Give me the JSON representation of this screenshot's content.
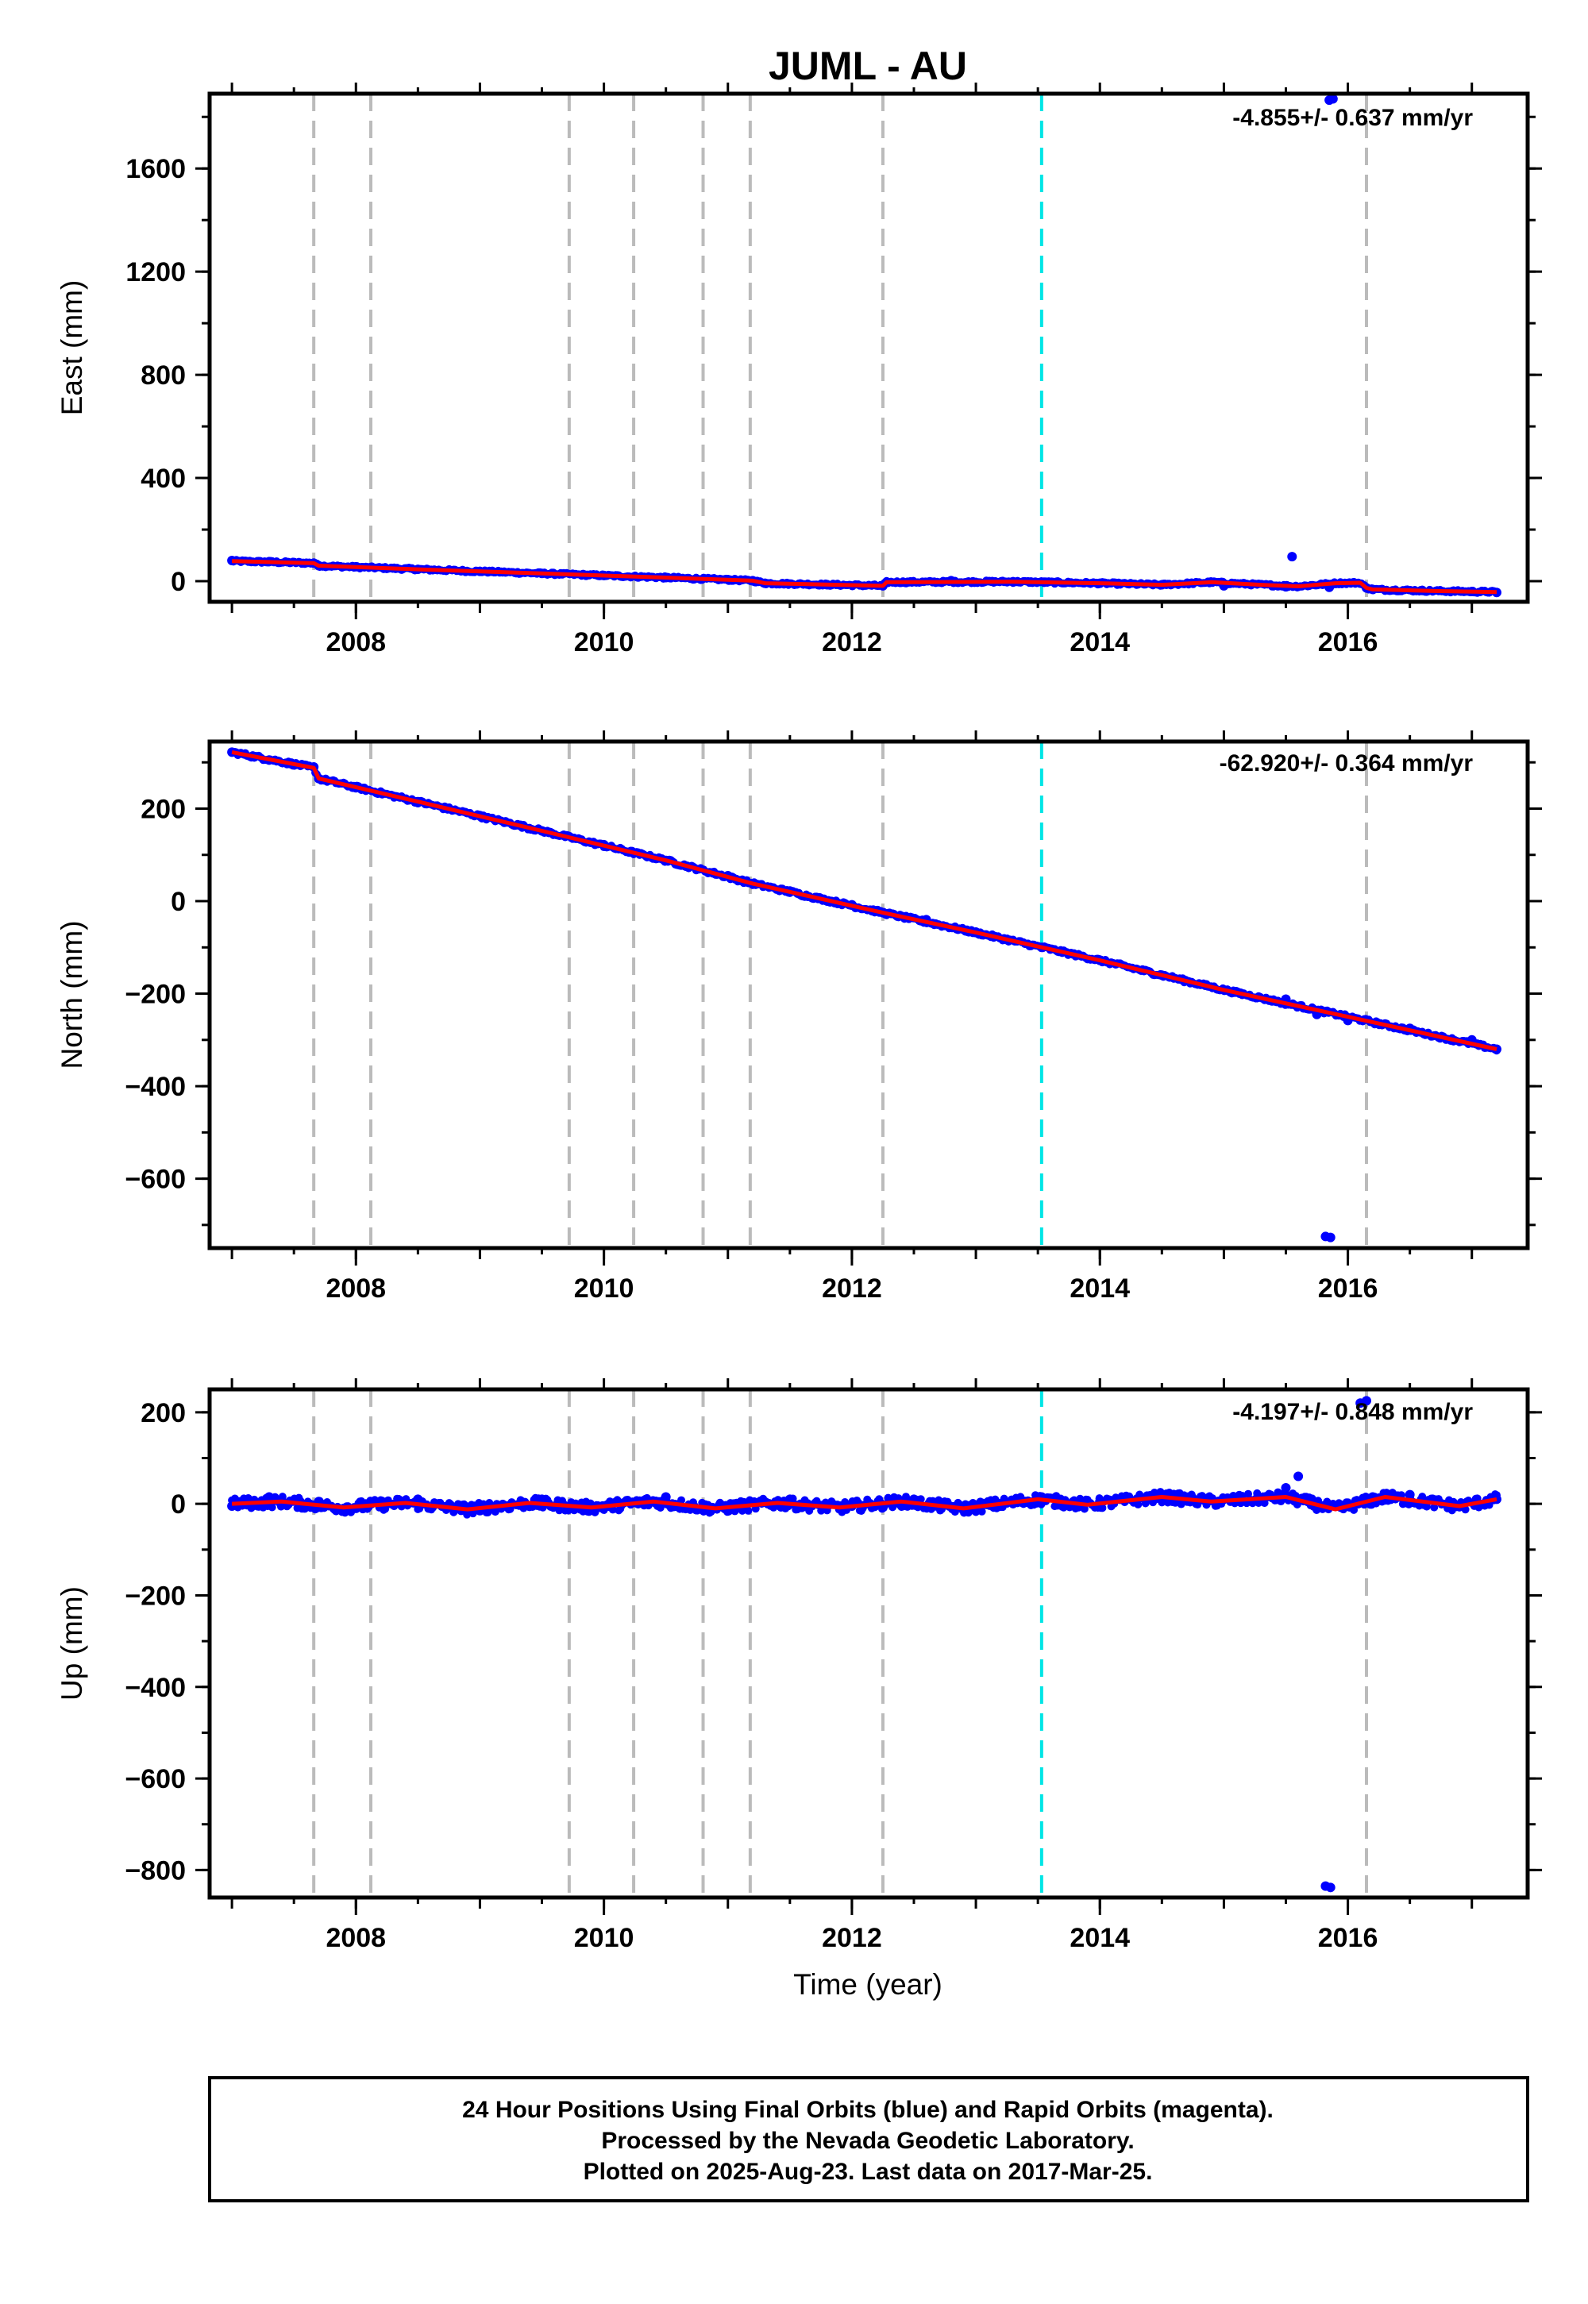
{
  "title": "JUML - AU",
  "x_axis_label": "Time (year)",
  "footer": {
    "line1": "24 Hour Positions Using Final Orbits (blue) and Rapid Orbits (magenta).",
    "line2": "Processed by the Nevada Geodetic Laboratory.",
    "line3": "Plotted on 2025-Aug-23. Last data on 2017-Mar-25."
  },
  "colors": {
    "data": "#0000ff",
    "model": "#ff0000",
    "steps_gray": "#bbbbbb",
    "step_cyan": "#00e5e5",
    "frame": "#000000"
  },
  "chart_data": [
    {
      "type": "scatter",
      "panel": "east",
      "title": "JUML - AU",
      "ylabel": "East (mm)",
      "xlabel": "",
      "rate_label": "-4.855+/- 0.637 mm/yr",
      "xlim": [
        2006.82,
        2017.45
      ],
      "ylim": [
        -80,
        1890
      ],
      "x_ticks": [
        2008,
        2010,
        2012,
        2014,
        2016
      ],
      "x_minor_step": 0.5,
      "y_ticks": [
        0,
        400,
        800,
        1200,
        1600
      ],
      "y_minor_step": 200,
      "grid": false,
      "series": [
        {
          "style": "dots",
          "points": [
            [
              2007.0,
              80
            ],
            [
              2007.3,
              76
            ],
            [
              2007.66,
              70
            ],
            [
              2007.7,
              60
            ],
            [
              2008.0,
              56
            ],
            [
              2008.5,
              46
            ],
            [
              2009.0,
              38
            ],
            [
              2009.5,
              30
            ],
            [
              2010.0,
              22
            ],
            [
              2010.5,
              14
            ],
            [
              2011.0,
              6
            ],
            [
              2011.2,
              2
            ],
            [
              2011.3,
              -8
            ],
            [
              2011.8,
              -14
            ],
            [
              2012.25,
              -18
            ],
            [
              2012.28,
              -4
            ],
            [
              2012.8,
              2
            ],
            [
              2013.3,
              -2
            ],
            [
              2013.55,
              -4
            ],
            [
              2014.0,
              -8
            ],
            [
              2014.5,
              -14
            ],
            [
              2015.0,
              -18
            ],
            [
              2015.5,
              -22
            ],
            [
              2015.85,
              -24
            ],
            [
              2016.15,
              -26
            ],
            [
              2016.2,
              -32
            ],
            [
              2016.6,
              -36
            ],
            [
              2017.0,
              -40
            ],
            [
              2017.2,
              -44
            ],
            [
              2015.55,
              95
            ],
            [
              2015.85,
              1865
            ],
            [
              2015.88,
              1870
            ]
          ]
        },
        {
          "style": "line",
          "points": [
            [
              2007.0,
              78
            ],
            [
              2007.66,
              70
            ],
            [
              2007.7,
              60
            ],
            [
              2008.5,
              46
            ],
            [
              2009.5,
              30
            ],
            [
              2010.5,
              14
            ],
            [
              2011.2,
              2
            ],
            [
              2011.3,
              -8
            ],
            [
              2012.25,
              -18
            ],
            [
              2012.28,
              -4
            ],
            [
              2013.3,
              -2
            ],
            [
              2014.0,
              -8
            ],
            [
              2014.5,
              -14
            ],
            [
              2014.9,
              -4
            ],
            [
              2015.3,
              -14
            ],
            [
              2015.6,
              -20
            ],
            [
              2015.9,
              -8
            ],
            [
              2016.1,
              -6
            ],
            [
              2016.15,
              -26
            ],
            [
              2016.2,
              -32
            ],
            [
              2016.7,
              -38
            ],
            [
              2017.2,
              -42
            ]
          ]
        }
      ],
      "vlines_gray": [
        2007.66,
        2008.12,
        2009.72,
        2010.24,
        2010.8,
        2011.18,
        2012.25,
        2016.15
      ],
      "vline_cyan": 2013.53
    },
    {
      "type": "scatter",
      "panel": "north",
      "ylabel": "North (mm)",
      "xlabel": "",
      "rate_label": "-62.920+/- 0.364 mm/yr",
      "xlim": [
        2006.82,
        2017.45
      ],
      "ylim": [
        -750,
        345
      ],
      "x_ticks": [
        2008,
        2010,
        2012,
        2014,
        2016
      ],
      "x_minor_step": 0.5,
      "y_ticks": [
        -600,
        -400,
        -200,
        0,
        200
      ],
      "y_minor_step": 100,
      "grid": false,
      "series": [
        {
          "style": "dots",
          "points": [
            [
              2007.0,
              322
            ],
            [
              2007.3,
              305
            ],
            [
              2007.66,
              290
            ],
            [
              2007.7,
              265
            ],
            [
              2008.0,
              245
            ],
            [
              2008.5,
              215
            ],
            [
              2009.0,
              185
            ],
            [
              2009.5,
              152
            ],
            [
              2010.0,
              122
            ],
            [
              2010.5,
              88
            ],
            [
              2011.0,
              55
            ],
            [
              2011.2,
              38
            ],
            [
              2011.5,
              22
            ],
            [
              2012.0,
              -8
            ],
            [
              2012.25,
              -25
            ],
            [
              2012.6,
              -40
            ],
            [
              2013.0,
              -68
            ],
            [
              2013.53,
              -100
            ],
            [
              2014.0,
              -128
            ],
            [
              2014.5,
              -160
            ],
            [
              2015.0,
              -192
            ],
            [
              2015.5,
              -212
            ],
            [
              2015.75,
              -245
            ],
            [
              2016.0,
              -258
            ],
            [
              2016.5,
              -275
            ],
            [
              2017.0,
              -300
            ],
            [
              2017.2,
              -320
            ],
            [
              2015.82,
              -725
            ],
            [
              2015.86,
              -727
            ]
          ]
        },
        {
          "style": "line",
          "points": [
            [
              2007.0,
              322
            ],
            [
              2007.66,
              288
            ],
            [
              2007.7,
              265
            ],
            [
              2008.5,
              215
            ],
            [
              2009.5,
              152
            ],
            [
              2010.5,
              88
            ],
            [
              2011.2,
              38
            ],
            [
              2012.25,
              -25
            ],
            [
              2013.0,
              -68
            ],
            [
              2014.0,
              -128
            ],
            [
              2015.0,
              -192
            ],
            [
              2016.0,
              -250
            ],
            [
              2017.2,
              -320
            ]
          ]
        }
      ],
      "vlines_gray": [
        2007.66,
        2008.12,
        2009.72,
        2010.24,
        2010.8,
        2011.18,
        2012.25,
        2016.15
      ],
      "vline_cyan": 2013.53
    },
    {
      "type": "scatter",
      "panel": "up",
      "ylabel": "Up (mm)",
      "xlabel": "Time (year)",
      "rate_label": "-4.197+/- 0.848 mm/yr",
      "xlim": [
        2006.82,
        2017.45
      ],
      "ylim": [
        -860,
        250
      ],
      "x_ticks": [
        2008,
        2010,
        2012,
        2014,
        2016
      ],
      "x_minor_step": 0.5,
      "y_ticks": [
        -800,
        -600,
        -400,
        -200,
        0,
        200
      ],
      "y_minor_step": 100,
      "grid": false,
      "series": [
        {
          "style": "dots",
          "points": [
            [
              2007.0,
              -5
            ],
            [
              2007.3,
              15
            ],
            [
              2007.7,
              5
            ],
            [
              2008.0,
              -10
            ],
            [
              2008.5,
              10
            ],
            [
              2009.0,
              -15
            ],
            [
              2009.5,
              10
            ],
            [
              2010.0,
              -5
            ],
            [
              2010.5,
              15
            ],
            [
              2011.0,
              -10
            ],
            [
              2011.5,
              10
            ],
            [
              2012.0,
              -5
            ],
            [
              2012.5,
              10
            ],
            [
              2013.0,
              -15
            ],
            [
              2013.53,
              15
            ],
            [
              2014.0,
              5
            ],
            [
              2014.5,
              20
            ],
            [
              2015.0,
              10
            ],
            [
              2015.5,
              35
            ],
            [
              2015.6,
              60
            ],
            [
              2015.9,
              -5
            ],
            [
              2016.2,
              15
            ],
            [
              2016.5,
              20
            ],
            [
              2016.9,
              -5
            ],
            [
              2017.2,
              10
            ],
            [
              2015.82,
              -835
            ],
            [
              2015.86,
              -838
            ],
            [
              2016.1,
              220
            ],
            [
              2016.15,
              225
            ]
          ]
        },
        {
          "style": "line",
          "points": [
            [
              2007.0,
              0
            ],
            [
              2007.4,
              5
            ],
            [
              2007.9,
              -8
            ],
            [
              2008.4,
              2
            ],
            [
              2008.9,
              -12
            ],
            [
              2009.4,
              2
            ],
            [
              2009.9,
              -8
            ],
            [
              2010.4,
              5
            ],
            [
              2010.9,
              -10
            ],
            [
              2011.4,
              2
            ],
            [
              2011.9,
              -8
            ],
            [
              2012.4,
              5
            ],
            [
              2012.9,
              -10
            ],
            [
              2013.5,
              10
            ],
            [
              2013.9,
              -2
            ],
            [
              2014.5,
              15
            ],
            [
              2014.9,
              5
            ],
            [
              2015.5,
              15
            ],
            [
              2015.9,
              -12
            ],
            [
              2016.3,
              15
            ],
            [
              2016.9,
              -5
            ],
            [
              2017.2,
              10
            ]
          ]
        }
      ],
      "vlines_gray": [
        2007.66,
        2008.12,
        2009.72,
        2010.24,
        2010.8,
        2011.18,
        2012.25,
        2016.15
      ],
      "vline_cyan": 2013.53
    }
  ]
}
